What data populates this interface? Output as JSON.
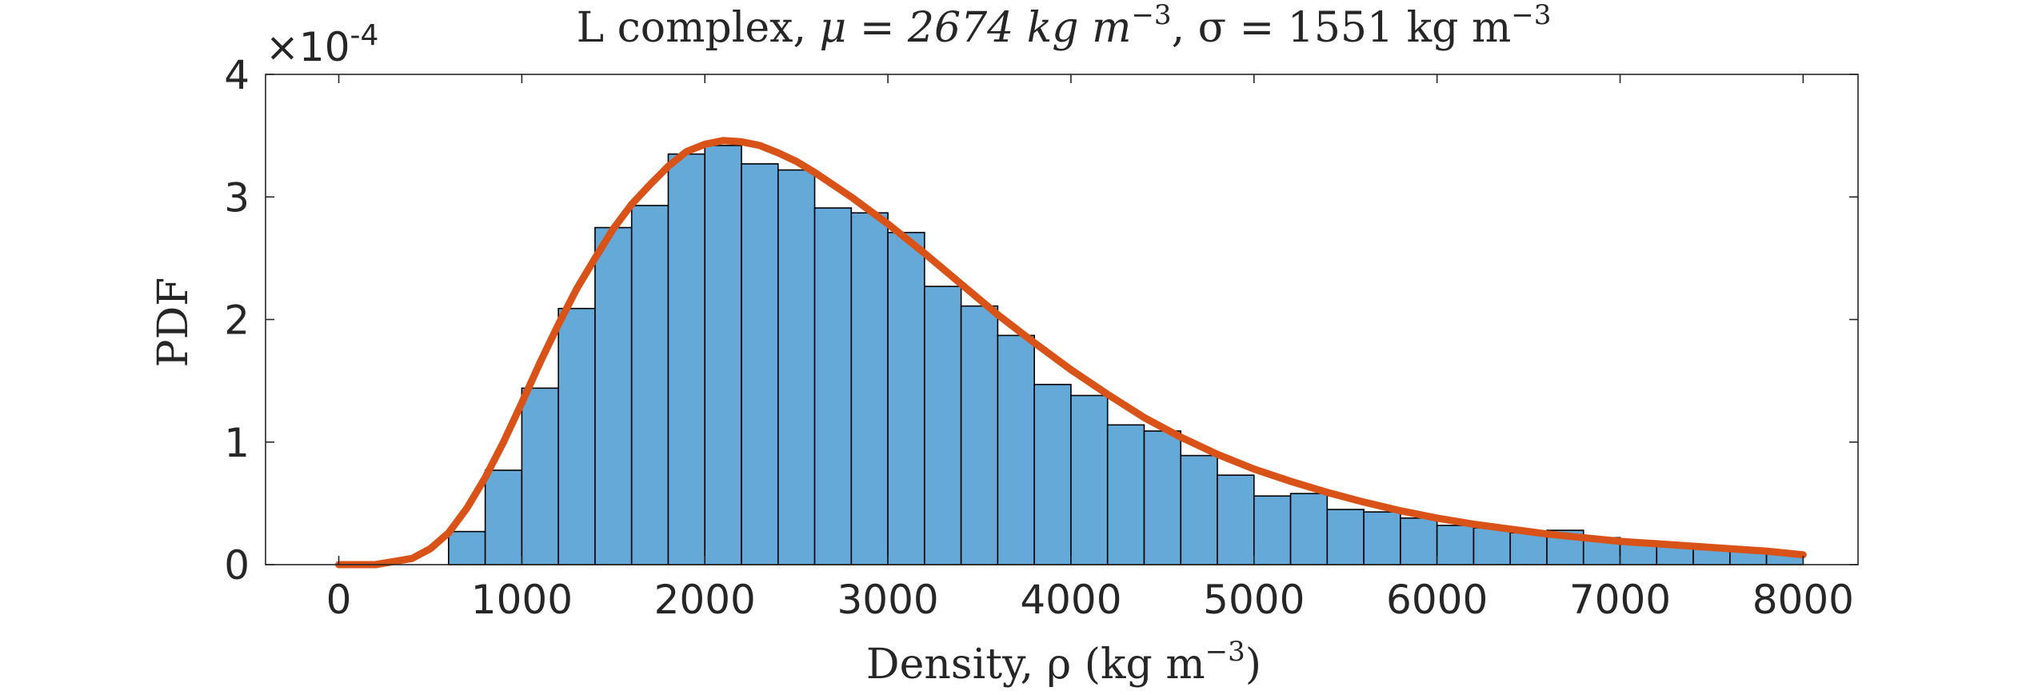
{
  "chart_data": {
    "type": "bar",
    "title": "L complex, μ = 2674 kg m⁻³, σ = 1551 kg m⁻³",
    "title_parts": {
      "prefix": "L complex, ",
      "mu_label": "μ = 2674 kg m",
      "sigma_label": ", σ = 1551 kg m",
      "exponent": "−3"
    },
    "xlabel": "Density, ρ (kg m⁻³)",
    "xlabel_parts": {
      "main": "Density, ρ (kg m",
      "exponent": "−3",
      "close": ")"
    },
    "ylabel": "PDF",
    "y_scale_prefix": "×10",
    "y_scale_exponent": "-4",
    "xlim": [
      -400,
      8300
    ],
    "ylim": [
      0,
      4
    ],
    "xticks": [
      0,
      1000,
      2000,
      3000,
      4000,
      5000,
      6000,
      7000,
      8000
    ],
    "yticks": [
      0,
      1,
      2,
      3,
      4
    ],
    "bin_width": 200,
    "series": [
      {
        "name": "histogram",
        "kind": "bar",
        "bin_starts": [
          600,
          800,
          1000,
          1200,
          1400,
          1600,
          1800,
          2000,
          2200,
          2400,
          2600,
          2800,
          3000,
          3200,
          3400,
          3600,
          3800,
          4000,
          4200,
          4400,
          4600,
          4800,
          5000,
          5200,
          5400,
          5600,
          5800,
          6000,
          6200,
          6400,
          6600,
          6800,
          7000,
          7200,
          7400,
          7600,
          7800
        ],
        "values": [
          0.27,
          0.77,
          1.44,
          2.09,
          2.75,
          2.93,
          3.35,
          3.42,
          3.27,
          3.22,
          2.91,
          2.87,
          2.71,
          2.27,
          2.11,
          1.87,
          1.47,
          1.38,
          1.14,
          1.09,
          0.89,
          0.73,
          0.56,
          0.58,
          0.45,
          0.43,
          0.38,
          0.32,
          0.3,
          0.26,
          0.28,
          0.22,
          0.19,
          0.16,
          0.14,
          0.12,
          0.1
        ]
      },
      {
        "name": "fit",
        "kind": "line",
        "color": "#d95319",
        "x": [
          0,
          200,
          400,
          500,
          600,
          700,
          800,
          900,
          1000,
          1100,
          1200,
          1300,
          1400,
          1500,
          1600,
          1700,
          1800,
          1900,
          2000,
          2100,
          2200,
          2300,
          2400,
          2500,
          2600,
          2800,
          3000,
          3200,
          3400,
          3600,
          3800,
          4000,
          4200,
          4400,
          4600,
          4800,
          5000,
          5200,
          5400,
          5600,
          5800,
          6000,
          6200,
          6400,
          6600,
          6800,
          7000,
          7200,
          7400,
          7600,
          7800,
          8000
        ],
        "y": [
          0.0,
          0.0,
          0.05,
          0.13,
          0.26,
          0.46,
          0.71,
          1.0,
          1.32,
          1.65,
          1.96,
          2.25,
          2.5,
          2.74,
          2.94,
          3.1,
          3.25,
          3.37,
          3.43,
          3.46,
          3.45,
          3.42,
          3.36,
          3.29,
          3.2,
          3.0,
          2.78,
          2.54,
          2.29,
          2.04,
          1.81,
          1.59,
          1.39,
          1.2,
          1.04,
          0.9,
          0.78,
          0.68,
          0.59,
          0.51,
          0.44,
          0.38,
          0.33,
          0.29,
          0.25,
          0.22,
          0.19,
          0.17,
          0.15,
          0.13,
          0.11,
          0.08
        ]
      }
    ],
    "colors": {
      "bars": "#65a9d8",
      "bar_edge": "#000000",
      "fit": "#d95319",
      "axis": "#262626"
    },
    "grid": false,
    "legend": "none"
  }
}
